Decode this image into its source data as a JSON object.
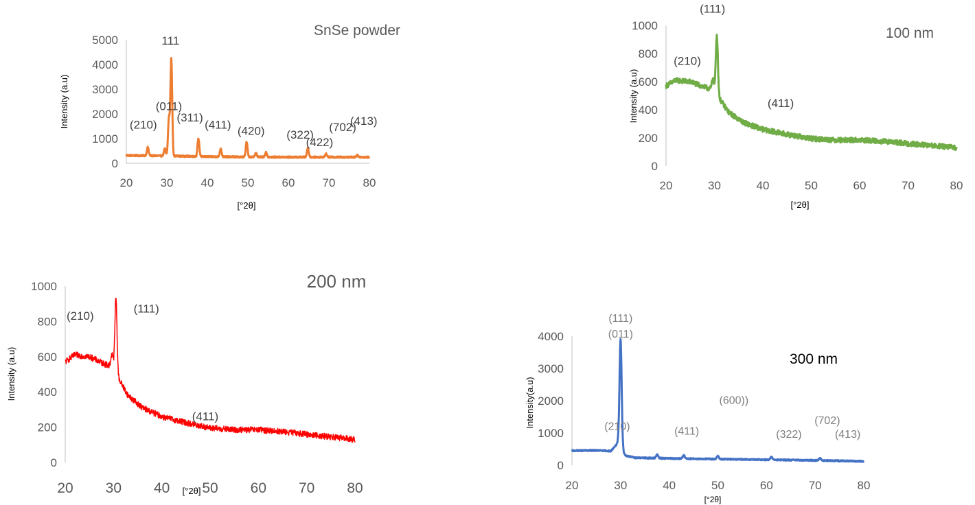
{
  "chart_data": [
    {
      "id": "powder",
      "type": "line",
      "title": "SnSe powder",
      "ylabel": "Intensity (a.u)",
      "xlabel": "[°2θ]",
      "color": "#ED7D31",
      "xlim": [
        20,
        80
      ],
      "ylim": [
        0,
        5000
      ],
      "xticks": [
        20,
        30,
        40,
        50,
        60,
        70,
        80
      ],
      "yticks": [
        0,
        1000,
        2000,
        3000,
        4000,
        5000
      ],
      "baseline": [
        [
          20,
          320
        ],
        [
          30,
          300
        ],
        [
          40,
          270
        ],
        [
          50,
          255
        ],
        [
          60,
          250
        ],
        [
          70,
          250
        ],
        [
          80,
          250
        ]
      ],
      "noise": 60,
      "peaks": [
        {
          "x": 25.3,
          "y": 650
        },
        {
          "x": 29.5,
          "y": 600
        },
        {
          "x": 30.5,
          "y": 1800
        },
        {
          "x": 31.1,
          "y": 4200
        },
        {
          "x": 37.8,
          "y": 1000
        },
        {
          "x": 43.3,
          "y": 600
        },
        {
          "x": 49.7,
          "y": 870
        },
        {
          "x": 52.0,
          "y": 420
        },
        {
          "x": 54.5,
          "y": 450
        },
        {
          "x": 64.8,
          "y": 620
        },
        {
          "x": 69.3,
          "y": 380
        },
        {
          "x": 77.0,
          "y": 330
        }
      ],
      "annotations": [
        {
          "text": "111",
          "x": 30.9,
          "y": 4800
        },
        {
          "text": "(210)",
          "x": 24.2,
          "y": 1400
        },
        {
          "text": "(011)",
          "x": 30.5,
          "y": 2150
        },
        {
          "text": "(311)",
          "x": 35.7,
          "y": 1700
        },
        {
          "text": "(411)",
          "x": 42.6,
          "y": 1400
        },
        {
          "text": "(420)",
          "x": 50.8,
          "y": 1150
        },
        {
          "text": "(322)",
          "x": 62.9,
          "y": 1000
        },
        {
          "text": "(422)",
          "x": 67.7,
          "y": 700
        },
        {
          "text": "(702)",
          "x": 73.4,
          "y": 1300
        },
        {
          "text": "(413)",
          "x": 78.6,
          "y": 1550
        }
      ]
    },
    {
      "id": "nm100",
      "type": "line",
      "title": "100 nm",
      "ylabel": "Intensity (a.u)",
      "xlabel": "[°2θ]",
      "color": "#70AD47",
      "xlim": [
        20,
        80
      ],
      "ylim": [
        0,
        1000
      ],
      "xticks": [
        20,
        30,
        40,
        50,
        60,
        70,
        80
      ],
      "yticks": [
        0,
        200,
        400,
        600,
        800,
        1000
      ],
      "baseline": [
        [
          20,
          570
        ],
        [
          22,
          610
        ],
        [
          25,
          600
        ],
        [
          28,
          560
        ],
        [
          29.5,
          545
        ],
        [
          31,
          480
        ],
        [
          33,
          380
        ],
        [
          36,
          310
        ],
        [
          40,
          260
        ],
        [
          45,
          225
        ],
        [
          50,
          195
        ],
        [
          55,
          185
        ],
        [
          60,
          185
        ],
        [
          65,
          175
        ],
        [
          70,
          160
        ],
        [
          75,
          145
        ],
        [
          80,
          130
        ]
      ],
      "noise": 35,
      "peaks": [
        {
          "x": 29.7,
          "y": 620
        },
        {
          "x": 30.5,
          "y": 930
        }
      ],
      "annotations": [
        {
          "text": "(111)",
          "x": 29.6,
          "y": 1090
        },
        {
          "text": "(210)",
          "x": 24.4,
          "y": 720
        },
        {
          "text": "(411)",
          "x": 43.7,
          "y": 420
        }
      ]
    },
    {
      "id": "nm200",
      "type": "line",
      "title": "200 nm",
      "ylabel": "Intensity (a.u)",
      "xlabel": "[°2θ]",
      "color": "#FF0000",
      "xlim": [
        20,
        80
      ],
      "ylim": [
        0,
        1000
      ],
      "xticks": [
        20,
        30,
        40,
        50,
        60,
        70,
        80
      ],
      "yticks": [
        0,
        200,
        400,
        600,
        800,
        1000
      ],
      "baseline": [
        [
          20,
          570
        ],
        [
          22,
          610
        ],
        [
          25,
          600
        ],
        [
          28,
          560
        ],
        [
          29.5,
          545
        ],
        [
          31,
          480
        ],
        [
          33,
          380
        ],
        [
          36,
          310
        ],
        [
          40,
          260
        ],
        [
          45,
          225
        ],
        [
          50,
          195
        ],
        [
          55,
          185
        ],
        [
          60,
          185
        ],
        [
          65,
          175
        ],
        [
          70,
          160
        ],
        [
          75,
          145
        ],
        [
          80,
          130
        ]
      ],
      "noise": 35,
      "peaks": [
        {
          "x": 29.7,
          "y": 620
        },
        {
          "x": 30.5,
          "y": 930
        }
      ],
      "annotations": [
        {
          "text": "(111)",
          "x": 36.8,
          "y": 850
        },
        {
          "text": "(210)",
          "x": 23.1,
          "y": 810
        },
        {
          "text": "(411)",
          "x": 49.0,
          "y": 240
        }
      ]
    },
    {
      "id": "nm300",
      "type": "line",
      "title": "300 nm",
      "ylabel": "Intensity(a.u)",
      "xlabel": "[°2θ]",
      "color": "#4472C4",
      "xlim": [
        20,
        80
      ],
      "ylim": [
        0,
        4000
      ],
      "xticks": [
        20,
        30,
        40,
        50,
        60,
        70,
        80
      ],
      "yticks": [
        0,
        1000,
        2000,
        3000,
        4000
      ],
      "baseline": [
        [
          20,
          450
        ],
        [
          25,
          460
        ],
        [
          28,
          440
        ],
        [
          29.5,
          700
        ],
        [
          31,
          300
        ],
        [
          33,
          230
        ],
        [
          40,
          210
        ],
        [
          50,
          190
        ],
        [
          60,
          170
        ],
        [
          70,
          150
        ],
        [
          80,
          120
        ]
      ],
      "noise": 40,
      "peaks": [
        {
          "x": 30.0,
          "y": 3900
        },
        {
          "x": 37.5,
          "y": 330
        },
        {
          "x": 43.0,
          "y": 300
        },
        {
          "x": 50.0,
          "y": 280
        },
        {
          "x": 61.0,
          "y": 250
        },
        {
          "x": 71.0,
          "y": 220
        }
      ],
      "annotations": [
        {
          "text": "(111)",
          "x": 30.0,
          "y": 4450
        },
        {
          "text": "(011)",
          "x": 30.0,
          "y": 3960
        },
        {
          "text": "(210)",
          "x": 29.3,
          "y": 1100
        },
        {
          "text": "(411)",
          "x": 43.6,
          "y": 950
        },
        {
          "text": "(600))",
          "x": 53.3,
          "y": 1900
        },
        {
          "text": "(322)",
          "x": 64.6,
          "y": 850
        },
        {
          "text": "(702)",
          "x": 72.5,
          "y": 1280
        },
        {
          "text": "(413)",
          "x": 76.7,
          "y": 850
        }
      ]
    }
  ]
}
